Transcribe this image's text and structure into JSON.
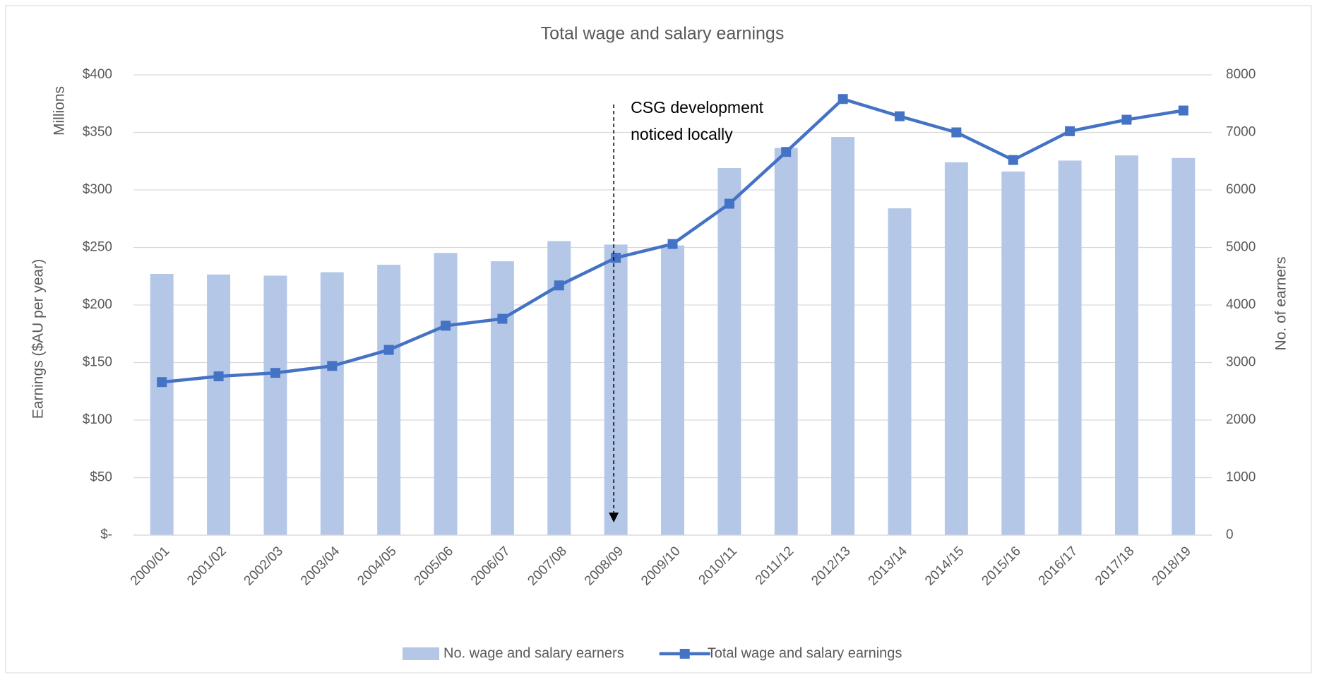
{
  "chart_data": {
    "type": "combo",
    "title": "Total wage and salary earnings",
    "y_label": "Earnings ($AU per year)",
    "y_unit_label": "Millions",
    "y2_label": "No. of earners",
    "categories": [
      "2000/01",
      "2001/02",
      "2002/03",
      "2003/04",
      "2004/05",
      "2005/06",
      "2006/07",
      "2007/08",
      "2008/09",
      "2009/10",
      "2010/11",
      "2011/12",
      "2012/13",
      "2013/14",
      "2014/15",
      "2015/16",
      "2016/17",
      "2017/18",
      "2018/19"
    ],
    "series": [
      {
        "name": "No. wage and salary earners",
        "type": "bar",
        "axis": "y2",
        "color": "#b4c7e7",
        "values": [
          4540,
          4530,
          4510,
          4570,
          4700,
          4905,
          4760,
          5110,
          5050,
          5035,
          6380,
          6730,
          6920,
          5680,
          6480,
          6320,
          6510,
          6600,
          6555
        ]
      },
      {
        "name": "Total wage and salary earnings",
        "type": "line",
        "color": "#4472c4",
        "values": [
          133,
          138,
          141,
          147,
          161,
          182,
          188,
          217,
          241,
          253,
          288,
          333,
          379,
          364,
          350,
          326,
          351,
          361,
          369
        ]
      }
    ],
    "ylim": [
      0,
      400
    ],
    "yticks": [
      {
        "value": 0,
        "label": "$-"
      },
      {
        "value": 50,
        "label": "$50"
      },
      {
        "value": 100,
        "label": "$100"
      },
      {
        "value": 150,
        "label": "$150"
      },
      {
        "value": 200,
        "label": "$200"
      },
      {
        "value": 250,
        "label": "$250"
      },
      {
        "value": 300,
        "label": "$300"
      },
      {
        "value": 350,
        "label": "$350"
      },
      {
        "value": 400,
        "label": "$400"
      }
    ],
    "y2lim": [
      0,
      8000
    ],
    "y2ticks": [
      0,
      1000,
      2000,
      3000,
      4000,
      5000,
      6000,
      7000,
      8000
    ],
    "grid": true,
    "legend": "bottom",
    "annotation": {
      "lines": [
        "CSG development",
        "noticed locally"
      ],
      "category": "2008/09"
    }
  }
}
